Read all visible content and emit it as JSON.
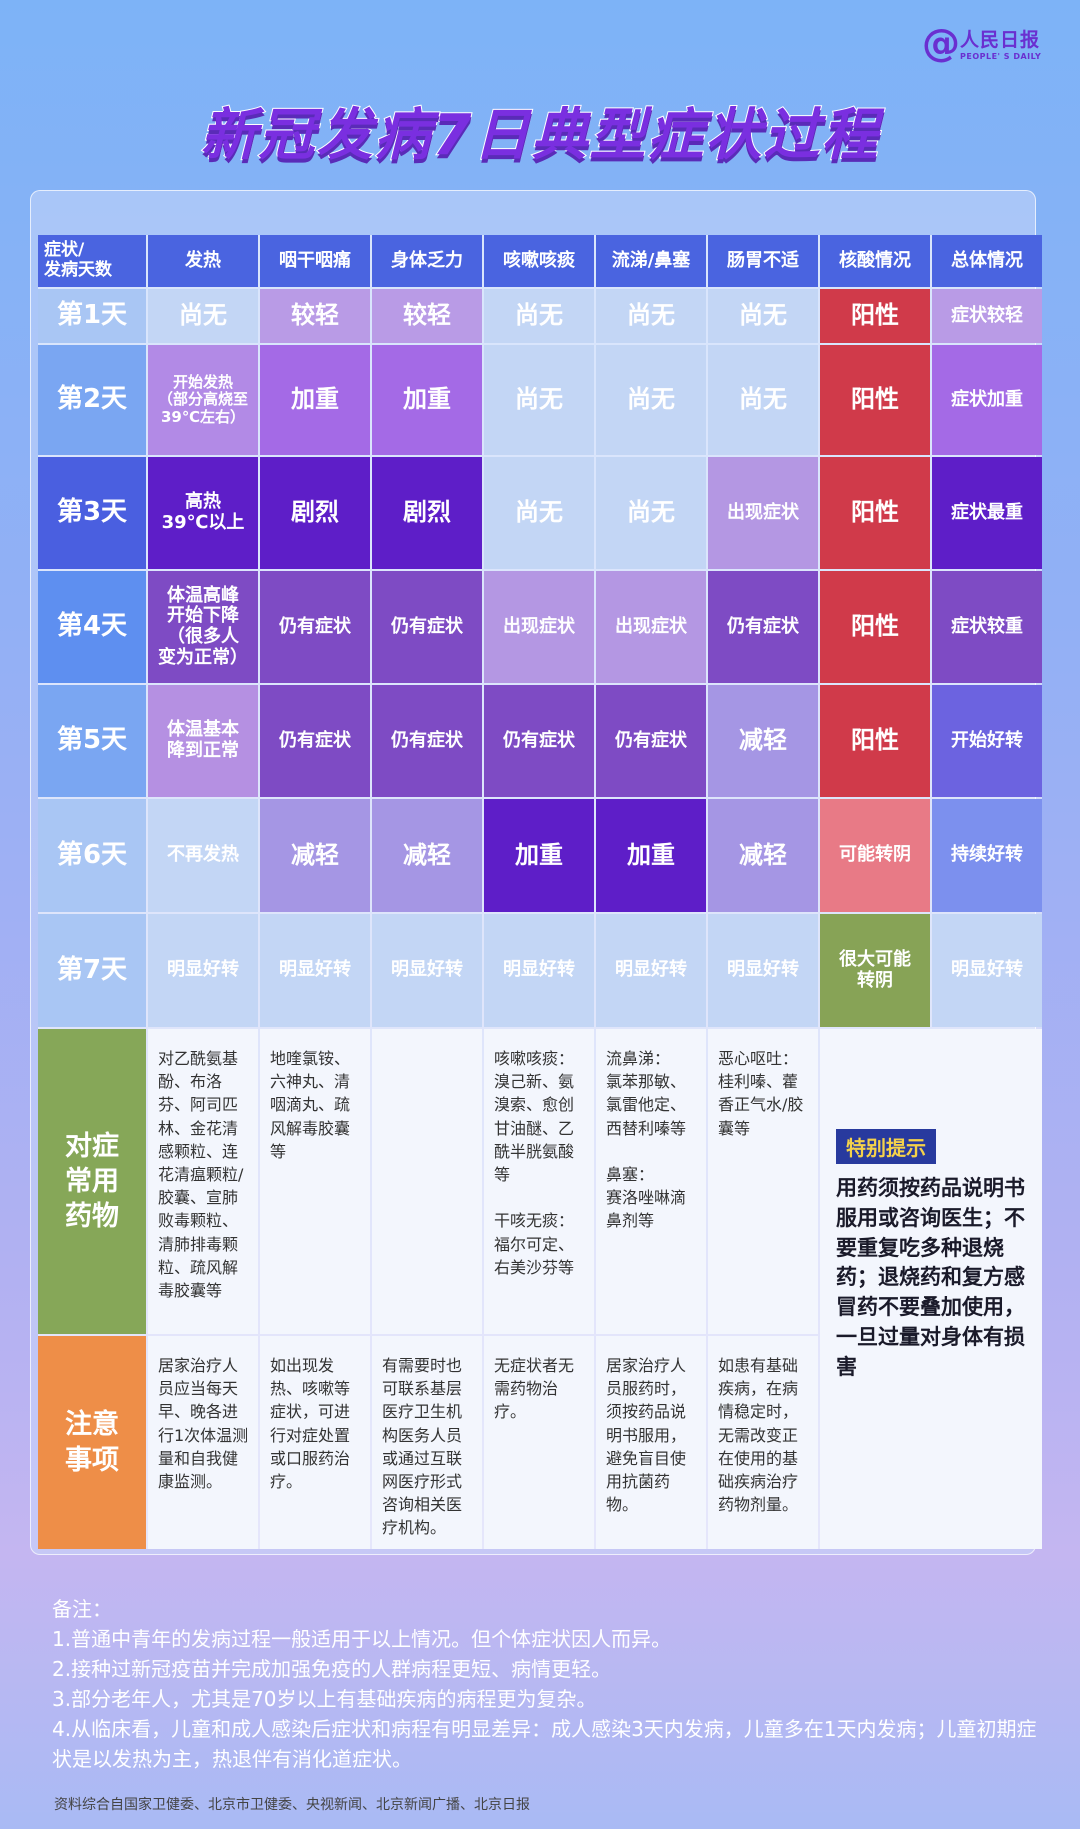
{
  "logo": {
    "cn": "人民日报",
    "en": "PEOPLE' S DAILY"
  },
  "title": "新冠发病7日典型症状过程",
  "colors": {
    "header": "#4a64e0",
    "positive": "#d03a4a",
    "medicine_label": "#86a758",
    "notes_label": "#ee8e48"
  },
  "table": {
    "corner": "症状/\n发病天数",
    "headers": [
      "发热",
      "咽干咽痛",
      "身体乏力",
      "咳嗽咳痰",
      "流涕/鼻塞",
      "肠胃不适",
      "核酸情况",
      "总体情况"
    ],
    "rows": [
      {
        "day": "第1天",
        "day_color": "#a9c6f4",
        "cells": [
          {
            "t": "尚无",
            "c": "#c3d6f5"
          },
          {
            "t": "较轻",
            "c": "#b99be6"
          },
          {
            "t": "较轻",
            "c": "#b99be6"
          },
          {
            "t": "尚无",
            "c": "#c3d6f5"
          },
          {
            "t": "尚无",
            "c": "#c3d6f5"
          },
          {
            "t": "尚无",
            "c": "#c3d6f5"
          },
          {
            "t": "阳性",
            "c": "#d03a4a"
          },
          {
            "t": "症状较轻",
            "c": "#b99be6",
            "s": "small"
          }
        ]
      },
      {
        "day": "第2天",
        "day_color": "#7aa6f2",
        "cells": [
          {
            "t": "开始发热\n（部分高烧至\n39℃左右）",
            "c": "#b28ae6",
            "s": "tiny"
          },
          {
            "t": "加重",
            "c": "#a46ae6"
          },
          {
            "t": "加重",
            "c": "#a46ae6"
          },
          {
            "t": "尚无",
            "c": "#c3d6f5"
          },
          {
            "t": "尚无",
            "c": "#c3d6f5"
          },
          {
            "t": "尚无",
            "c": "#c3d6f5"
          },
          {
            "t": "阳性",
            "c": "#d03a4a"
          },
          {
            "t": "症状加重",
            "c": "#a46ae6",
            "s": "small"
          }
        ]
      },
      {
        "day": "第3天",
        "day_color": "#4a5fe0",
        "cells": [
          {
            "t": "高热\n39℃以上",
            "c": "#5e1ec8",
            "s": "small"
          },
          {
            "t": "剧烈",
            "c": "#5e1ec8"
          },
          {
            "t": "剧烈",
            "c": "#5e1ec8"
          },
          {
            "t": "尚无",
            "c": "#c3d6f5"
          },
          {
            "t": "尚无",
            "c": "#c3d6f5"
          },
          {
            "t": "出现症状",
            "c": "#b497e3",
            "s": "small"
          },
          {
            "t": "阳性",
            "c": "#d03a4a"
          },
          {
            "t": "症状最重",
            "c": "#5e1ec8",
            "s": "small"
          }
        ]
      },
      {
        "day": "第4天",
        "day_color": "#5e8ff0",
        "cells": [
          {
            "t": "体温高峰\n开始下降\n（很多人\n变为正常）",
            "c": "#7e4bc4",
            "s": "small"
          },
          {
            "t": "仍有症状",
            "c": "#7e4bc4",
            "s": "small"
          },
          {
            "t": "仍有症状",
            "c": "#7e4bc4",
            "s": "small"
          },
          {
            "t": "出现症状",
            "c": "#b497e3",
            "s": "small"
          },
          {
            "t": "出现症状",
            "c": "#b497e3",
            "s": "small"
          },
          {
            "t": "仍有症状",
            "c": "#7e4bc4",
            "s": "small"
          },
          {
            "t": "阳性",
            "c": "#d03a4a"
          },
          {
            "t": "症状较重",
            "c": "#7e4bc4",
            "s": "small"
          }
        ]
      },
      {
        "day": "第5天",
        "day_color": "#7aa6f2",
        "cells": [
          {
            "t": "体温基本\n降到正常",
            "c": "#b590e2",
            "s": "small"
          },
          {
            "t": "仍有症状",
            "c": "#7e4bc4",
            "s": "small"
          },
          {
            "t": "仍有症状",
            "c": "#7e4bc4",
            "s": "small"
          },
          {
            "t": "仍有症状",
            "c": "#7e4bc4",
            "s": "small"
          },
          {
            "t": "仍有症状",
            "c": "#7e4bc4",
            "s": "small"
          },
          {
            "t": "减轻",
            "c": "#a596e4"
          },
          {
            "t": "阳性",
            "c": "#d03a4a"
          },
          {
            "t": "开始好转",
            "c": "#6c63e0",
            "s": "small"
          }
        ]
      },
      {
        "day": "第6天",
        "day_color": "#a9c6f4",
        "cells": [
          {
            "t": "不再发热",
            "c": "#c3d6f5",
            "s": "small"
          },
          {
            "t": "减轻",
            "c": "#a596e4"
          },
          {
            "t": "减轻",
            "c": "#a596e4"
          },
          {
            "t": "加重",
            "c": "#5e1ec8"
          },
          {
            "t": "加重",
            "c": "#5e1ec8"
          },
          {
            "t": "减轻",
            "c": "#a596e4"
          },
          {
            "t": "可能转阴",
            "c": "#e87a86",
            "s": "small"
          },
          {
            "t": "持续好转",
            "c": "#7c90ee",
            "s": "small"
          }
        ]
      },
      {
        "day": "第7天",
        "day_color": "#a9c6f4",
        "cells": [
          {
            "t": "明显好转",
            "c": "#c3d6f5",
            "s": "small"
          },
          {
            "t": "明显好转",
            "c": "#c3d6f5",
            "s": "small"
          },
          {
            "t": "明显好转",
            "c": "#c3d6f5",
            "s": "small"
          },
          {
            "t": "明显好转",
            "c": "#c3d6f5",
            "s": "small"
          },
          {
            "t": "明显好转",
            "c": "#c3d6f5",
            "s": "small"
          },
          {
            "t": "明显好转",
            "c": "#c3d6f5",
            "s": "small"
          },
          {
            "t": "很大可能\n转阴",
            "c": "#87a356",
            "s": "small"
          },
          {
            "t": "明显好转",
            "c": "#c3d6f5",
            "s": "small"
          }
        ]
      }
    ],
    "medicine": {
      "label": "对症\n常用\n药物",
      "cells": [
        "对乙酰氨基酚、布洛芬、阿司匹林、金花清感颗粒、连花清瘟颗粒/胶囊、宣肺败毒颗粒、清肺排毒颗粒、疏风解毒胶囊等",
        "地喹氯铵、六神丸、清咽滴丸、疏风解毒胶囊等",
        "",
        "咳嗽咳痰：\n溴己新、氨溴索、愈创甘油醚、乙酰半胱氨酸等\n\n干咳无痰：\n福尔可定、右美沙芬等",
        "流鼻涕：\n氯苯那敏、氯雷他定、西替利嗪等\n\n鼻塞：\n赛洛唑啉滴鼻剂等",
        "恶心呕吐：\n桂利嗪、藿香正气水/胶囊等"
      ]
    },
    "precautions": {
      "label": "注意\n事项",
      "cells": [
        "居家治疗人员应当每天早、晚各进行1次体温测量和自我健康监测。",
        "如出现发热、咳嗽等症状，可进行对症处置或口服药治疗。",
        "有需要时也可联系基层医疗卫生机构医务人员或通过互联网医疗形式咨询相关医疗机构。",
        "无症状者无需药物治疗。",
        "居家治疗人员服药时，须按药品说明书服用，避免盲目使用抗菌药物。",
        "如患有基础疾病，在病情稳定时，无需改变正在使用的基础疾病治疗药物剂量。"
      ]
    },
    "tip": {
      "title": "特别提示",
      "body": "用药须按药品说明书服用或咨询医生；不要重复吃多种退烧药；退烧药和复方感冒药不要叠加使用，一旦过量对身体有损害"
    }
  },
  "notes": {
    "title": "备注：",
    "items": [
      "1.普通中青年的发病过程一般适用于以上情况。但个体症状因人而异。",
      "2.接种过新冠疫苗并完成加强免疫的人群病程更短、病情更轻。",
      "3.部分老年人，尤其是70岁以上有基础疾病的病程更为复杂。",
      "4.从临床看，儿童和成人感染后症状和病程有明显差异：成人感染3天内发病，儿童多在1天内发病；儿童初期症状是以发热为主，热退伴有消化道症状。"
    ]
  },
  "source": "资料综合自国家卫健委、北京市卫健委、央视新闻、北京新闻广播、北京日报"
}
